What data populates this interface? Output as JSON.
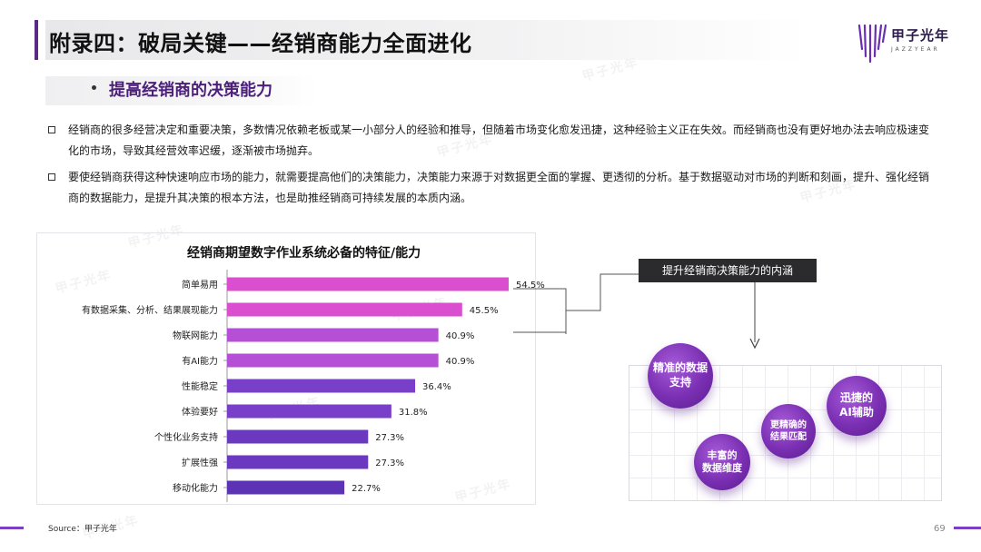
{
  "header": {
    "title": "附录四：破局关键——经销商能力全面进化",
    "logo_text": "甲子光年",
    "logo_sub": "JAZZYEAR"
  },
  "section": {
    "subtitle": "提高经销商的决策能力"
  },
  "paragraphs": [
    {
      "line1": "经销商的很多经营决定和重要决策，多数情况依赖老板或某一小部分人的经验和推导，但随着市场变化愈发迅捷，这种经验主义正在失效。而经销商也没有更好地办法去响应极速变",
      "line2": "化的市场，导致其经营效率迟缓，逐渐被市场抛弃。"
    },
    {
      "line1": "要使经销商获得这种快速响应市场的能力，就需要提高他们的决策能力，决策能力来源于对数据更全面的掌握、更透彻的分析。基于数据驱动对市场的判断和刻画，提升、强化经销",
      "line2": "商的数据能力，是提升其决策的根本方法，也是助推经销商可持续发展的本质内涵。"
    }
  ],
  "chart_data": {
    "type": "bar",
    "orientation": "horizontal",
    "title": "经销商期望数字作业系统必备的特征/能力",
    "categories": [
      "简单易用",
      "有数据采集、分析、结果展现能力",
      "物联网能力",
      "有AI能力",
      "性能稳定",
      "体验要好",
      "个性化业务支持",
      "扩展性强",
      "移动化能力"
    ],
    "values": [
      54.5,
      45.5,
      40.9,
      40.9,
      36.4,
      31.8,
      27.3,
      27.3,
      22.7
    ],
    "value_labels": [
      "54.5%",
      "45.5%",
      "40.9%",
      "40.9%",
      "36.4%",
      "31.8%",
      "27.3%",
      "27.3%",
      "22.7%"
    ],
    "colors": [
      "#d94fcf",
      "#d94fcf",
      "#b550d6",
      "#b550d6",
      "#7a3fc8",
      "#7a3fc8",
      "#6b39c0",
      "#6b39c0",
      "#5b33b4"
    ],
    "xlim": [
      0,
      60
    ],
    "grid": false,
    "legend": "none"
  },
  "implication": {
    "box_label": "提升经销商决策能力的内涵",
    "bubbles": [
      {
        "line1": "精准的数据",
        "line2": "支持"
      },
      {
        "line1": "迅捷的",
        "line2": "AI辅助"
      },
      {
        "line1": "更精确的",
        "line2": "结果匹配"
      },
      {
        "line1": "丰富的",
        "line2": "数据维度"
      }
    ]
  },
  "footer": {
    "source": "Source：甲子光年",
    "page": "69"
  }
}
